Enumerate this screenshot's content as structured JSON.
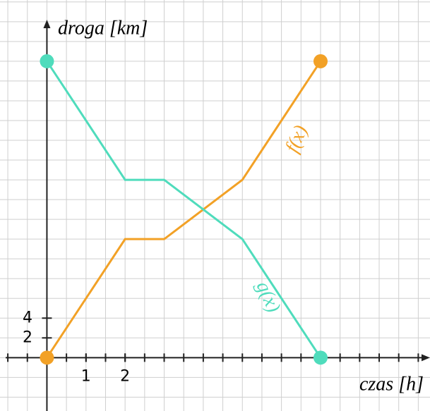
{
  "chart_data": {
    "type": "line",
    "x_label": "czas [h]",
    "y_label": "droga [km]",
    "x": [
      0,
      2,
      3,
      5,
      7
    ],
    "series": [
      {
        "name": "f(x)",
        "color": "#f2a126",
        "values": [
          0,
          12,
          12,
          18,
          30
        ]
      },
      {
        "name": "g(x)",
        "color": "#4fdcbc",
        "values": [
          30,
          18,
          18,
          12,
          0
        ]
      }
    ],
    "xlim": [
      -1.2,
      9.8
    ],
    "ylim": [
      -5.4,
      36.2
    ],
    "xticks": [
      1,
      2
    ],
    "yticks": [
      2,
      4
    ],
    "grid": true
  }
}
